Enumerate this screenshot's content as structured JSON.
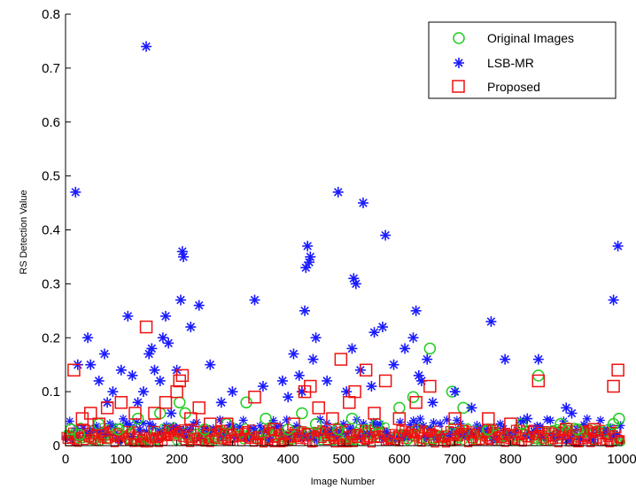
{
  "chart_data": {
    "type": "scatter",
    "title": "",
    "xlabel": "Image Number",
    "ylabel": "RS Detection Value",
    "xlim": [
      0,
      1000
    ],
    "ylim": [
      0,
      0.8
    ],
    "x_ticks": [
      "0",
      "100",
      "200",
      "300",
      "400",
      "500",
      "600",
      "700",
      "800",
      "900",
      "1000"
    ],
    "y_ticks": [
      "0",
      "0.1",
      "0.2",
      "0.3",
      "0.4",
      "0.5",
      "0.6",
      "0.7",
      "0.8"
    ],
    "grid": false,
    "legend_position": "top-right",
    "series": [
      {
        "name": "Original Images",
        "marker": "circle",
        "color": "#22cc22",
        "points": [
          [
            10,
            0.03
          ],
          [
            25,
            0.02
          ],
          [
            60,
            0.04
          ],
          [
            95,
            0.03
          ],
          [
            130,
            0.05
          ],
          [
            170,
            0.06
          ],
          [
            205,
            0.08
          ],
          [
            215,
            0.06
          ],
          [
            250,
            0.03
          ],
          [
            290,
            0.04
          ],
          [
            325,
            0.08
          ],
          [
            360,
            0.05
          ],
          [
            400,
            0.03
          ],
          [
            425,
            0.06
          ],
          [
            450,
            0.04
          ],
          [
            490,
            0.03
          ],
          [
            515,
            0.05
          ],
          [
            560,
            0.04
          ],
          [
            600,
            0.07
          ],
          [
            625,
            0.09
          ],
          [
            655,
            0.18
          ],
          [
            695,
            0.1
          ],
          [
            715,
            0.07
          ],
          [
            760,
            0.03
          ],
          [
            820,
            0.04
          ],
          [
            850,
            0.13
          ],
          [
            890,
            0.04
          ],
          [
            920,
            0.03
          ],
          [
            985,
            0.04
          ],
          [
            995,
            0.05
          ]
        ]
      },
      {
        "name": "LSB-MR",
        "marker": "star",
        "color": "#1a1aff",
        "points": [
          [
            18,
            0.47
          ],
          [
            22,
            0.15
          ],
          [
            40,
            0.2
          ],
          [
            45,
            0.15
          ],
          [
            60,
            0.12
          ],
          [
            70,
            0.17
          ],
          [
            75,
            0.08
          ],
          [
            85,
            0.1
          ],
          [
            100,
            0.14
          ],
          [
            112,
            0.24
          ],
          [
            120,
            0.13
          ],
          [
            130,
            0.08
          ],
          [
            140,
            0.1
          ],
          [
            145,
            0.74
          ],
          [
            150,
            0.17
          ],
          [
            155,
            0.18
          ],
          [
            160,
            0.14
          ],
          [
            170,
            0.12
          ],
          [
            175,
            0.2
          ],
          [
            180,
            0.24
          ],
          [
            185,
            0.19
          ],
          [
            190,
            0.06
          ],
          [
            200,
            0.14
          ],
          [
            207,
            0.27
          ],
          [
            210,
            0.36
          ],
          [
            212,
            0.35
          ],
          [
            225,
            0.22
          ],
          [
            240,
            0.26
          ],
          [
            260,
            0.15
          ],
          [
            280,
            0.08
          ],
          [
            300,
            0.1
          ],
          [
            340,
            0.27
          ],
          [
            355,
            0.11
          ],
          [
            390,
            0.12
          ],
          [
            400,
            0.09
          ],
          [
            410,
            0.17
          ],
          [
            420,
            0.13
          ],
          [
            425,
            0.1
          ],
          [
            430,
            0.25
          ],
          [
            432,
            0.33
          ],
          [
            435,
            0.37
          ],
          [
            438,
            0.34
          ],
          [
            440,
            0.35
          ],
          [
            445,
            0.16
          ],
          [
            450,
            0.2
          ],
          [
            470,
            0.12
          ],
          [
            490,
            0.47
          ],
          [
            505,
            0.1
          ],
          [
            515,
            0.18
          ],
          [
            518,
            0.31
          ],
          [
            522,
            0.3
          ],
          [
            530,
            0.14
          ],
          [
            535,
            0.45
          ],
          [
            550,
            0.11
          ],
          [
            555,
            0.21
          ],
          [
            570,
            0.22
          ],
          [
            575,
            0.39
          ],
          [
            590,
            0.15
          ],
          [
            610,
            0.18
          ],
          [
            625,
            0.2
          ],
          [
            630,
            0.25
          ],
          [
            635,
            0.13
          ],
          [
            640,
            0.12
          ],
          [
            650,
            0.16
          ],
          [
            660,
            0.08
          ],
          [
            700,
            0.1
          ],
          [
            730,
            0.07
          ],
          [
            765,
            0.23
          ],
          [
            790,
            0.16
          ],
          [
            830,
            0.05
          ],
          [
            850,
            0.16
          ],
          [
            900,
            0.07
          ],
          [
            910,
            0.06
          ],
          [
            985,
            0.27
          ],
          [
            993,
            0.37
          ]
        ]
      },
      {
        "name": "Proposed",
        "marker": "square",
        "color": "#ee1111",
        "points": [
          [
            15,
            0.14
          ],
          [
            30,
            0.05
          ],
          [
            45,
            0.06
          ],
          [
            60,
            0.04
          ],
          [
            75,
            0.07
          ],
          [
            100,
            0.08
          ],
          [
            125,
            0.06
          ],
          [
            145,
            0.22
          ],
          [
            160,
            0.06
          ],
          [
            180,
            0.08
          ],
          [
            200,
            0.1
          ],
          [
            205,
            0.12
          ],
          [
            210,
            0.13
          ],
          [
            225,
            0.05
          ],
          [
            240,
            0.07
          ],
          [
            260,
            0.04
          ],
          [
            290,
            0.04
          ],
          [
            340,
            0.09
          ],
          [
            375,
            0.03
          ],
          [
            410,
            0.04
          ],
          [
            430,
            0.1
          ],
          [
            440,
            0.11
          ],
          [
            455,
            0.07
          ],
          [
            480,
            0.05
          ],
          [
            495,
            0.16
          ],
          [
            510,
            0.08
          ],
          [
            520,
            0.1
          ],
          [
            540,
            0.14
          ],
          [
            555,
            0.06
          ],
          [
            575,
            0.12
          ],
          [
            600,
            0.05
          ],
          [
            630,
            0.08
          ],
          [
            655,
            0.11
          ],
          [
            700,
            0.05
          ],
          [
            760,
            0.05
          ],
          [
            800,
            0.04
          ],
          [
            850,
            0.12
          ],
          [
            900,
            0.03
          ],
          [
            950,
            0.03
          ],
          [
            985,
            0.11
          ],
          [
            993,
            0.14
          ]
        ]
      }
    ]
  }
}
